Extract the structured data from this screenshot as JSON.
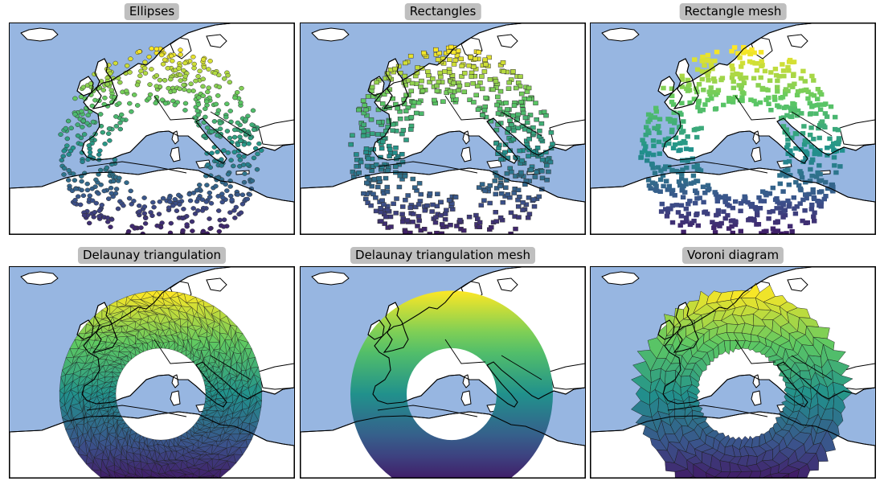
{
  "figure": {
    "colors": {
      "sea": "#97b6e1",
      "land": "#ffffff",
      "coast": "#000000",
      "title_box": "#bfbfbf"
    },
    "colormap": "viridis",
    "panels": [
      {
        "id": "ellipses",
        "title": "Ellipses",
        "style": "ellipses"
      },
      {
        "id": "rectangles",
        "title": "Rectangles",
        "style": "rectangles"
      },
      {
        "id": "rect-mesh",
        "title": "Rectangle mesh",
        "style": "rect-mesh"
      },
      {
        "id": "delaunay",
        "title": "Delaunay triangulation",
        "style": "delaunay"
      },
      {
        "id": "delaunay-mesh",
        "title": "Delaunay triangulation mesh",
        "style": "delaunay-mesh"
      },
      {
        "id": "voronoi",
        "title": "Voroni diagram",
        "style": "voronoi"
      }
    ]
  }
}
